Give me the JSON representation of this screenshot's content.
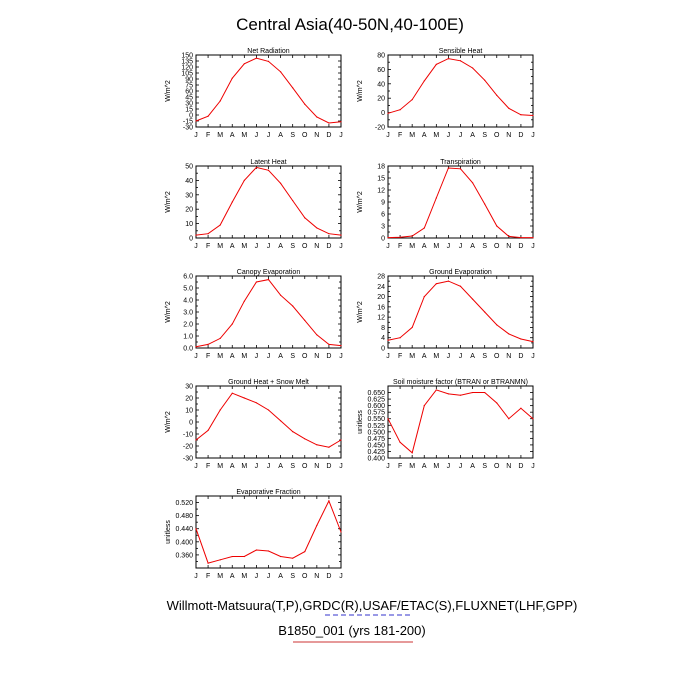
{
  "title": "Central Asia(40-50N,40-100E)",
  "footer": {
    "line1": "Willmott-Matsuura(T,P),GRDC(R),USAF/ETAC(S),FLUXNET(LHF,GPP)",
    "line2": "B1850_001 (yrs 181-200)"
  },
  "colors": {
    "line": "#ee0000",
    "axes": "#000000",
    "link_blue": "#3333cc",
    "link_red": "#cc3333"
  },
  "chart_data": [
    {
      "type": "line",
      "title": "Net Radiation",
      "ylabel": "W/m^2",
      "categories": [
        "J",
        "F",
        "M",
        "A",
        "M",
        "J",
        "J",
        "A",
        "S",
        "O",
        "N",
        "D",
        "J"
      ],
      "ylim": [
        -30,
        150
      ],
      "yticks": [
        -30,
        -15,
        0,
        15,
        30,
        45,
        60,
        75,
        90,
        105,
        120,
        135,
        150
      ],
      "ytick_labels": [
        "-30",
        "-15",
        "0",
        "15",
        "30",
        "45",
        "60",
        "75",
        "90",
        "105",
        "120",
        "135",
        "150"
      ],
      "values": [
        -15,
        -3,
        35,
        92,
        128,
        142,
        134,
        108,
        68,
        27,
        -5,
        -20,
        -17
      ]
    },
    {
      "type": "line",
      "title": "Sensible Heat",
      "ylabel": "W/m^2",
      "categories": [
        "J",
        "F",
        "M",
        "A",
        "M",
        "J",
        "J",
        "A",
        "S",
        "O",
        "N",
        "D",
        "J"
      ],
      "ylim": [
        -20,
        80
      ],
      "yticks": [
        -20,
        -10,
        0,
        10,
        20,
        30,
        40,
        50,
        60,
        70,
        80
      ],
      "ytick_labels": [
        "-20",
        "",
        "0",
        "",
        "20",
        "",
        "40",
        "",
        "60",
        "",
        "80"
      ],
      "values": [
        -1,
        4,
        18,
        44,
        67,
        75,
        72,
        62,
        45,
        24,
        6,
        -3,
        -4
      ]
    },
    {
      "type": "line",
      "title": "Latent Heat",
      "ylabel": "W/m^2",
      "categories": [
        "J",
        "F",
        "M",
        "A",
        "M",
        "J",
        "J",
        "A",
        "S",
        "O",
        "N",
        "D",
        "J"
      ],
      "ylim": [
        0,
        50
      ],
      "yticks": [
        0,
        5,
        10,
        15,
        20,
        25,
        30,
        35,
        40,
        45,
        50
      ],
      "ytick_labels": [
        "0",
        "",
        "10",
        "",
        "20",
        "",
        "30",
        "",
        "40",
        "",
        "50"
      ],
      "values": [
        2,
        3,
        9,
        25,
        40,
        49,
        47,
        38,
        26,
        14,
        7,
        3,
        2
      ]
    },
    {
      "type": "line",
      "title": "Transpiration",
      "ylabel": "W/m^2",
      "categories": [
        "J",
        "F",
        "M",
        "A",
        "M",
        "J",
        "J",
        "A",
        "S",
        "O",
        "N",
        "D",
        "J"
      ],
      "ylim": [
        0,
        18
      ],
      "yticks": [
        0,
        1.5,
        3,
        4.5,
        6,
        7.5,
        9,
        10.5,
        12,
        13.5,
        15,
        16.5,
        18
      ],
      "ytick_labels": [
        "0",
        "",
        "3",
        "",
        "6",
        "",
        "9",
        "",
        "12",
        "",
        "15",
        "",
        "18"
      ],
      "values": [
        0.1,
        0.2,
        0.5,
        2.5,
        10,
        17.5,
        17.3,
        13.8,
        8.5,
        3,
        0.4,
        0.1,
        0.1
      ]
    },
    {
      "type": "line",
      "title": "Canopy Evaporation",
      "ylabel": "W/m^2",
      "categories": [
        "J",
        "F",
        "M",
        "A",
        "M",
        "J",
        "J",
        "A",
        "S",
        "O",
        "N",
        "D",
        "J"
      ],
      "ylim": [
        0,
        6
      ],
      "yticks": [
        0,
        0.5,
        1,
        1.5,
        2,
        2.5,
        3,
        3.5,
        4,
        4.5,
        5,
        5.5,
        6
      ],
      "ytick_labels": [
        "0.0",
        "",
        "1.0",
        "",
        "2.0",
        "",
        "3.0",
        "",
        "4.0",
        "",
        "5.0",
        "",
        "6.0"
      ],
      "values": [
        0.1,
        0.3,
        0.8,
        2.0,
        3.9,
        5.5,
        5.7,
        4.4,
        3.5,
        2.3,
        1.1,
        0.3,
        0.2
      ]
    },
    {
      "type": "line",
      "title": "Ground Evaporation",
      "ylabel": "W/m^2",
      "categories": [
        "J",
        "F",
        "M",
        "A",
        "M",
        "J",
        "J",
        "A",
        "S",
        "O",
        "N",
        "D",
        "J"
      ],
      "ylim": [
        0,
        28
      ],
      "yticks": [
        0,
        2,
        4,
        6,
        8,
        10,
        12,
        14,
        16,
        18,
        20,
        22,
        24,
        26,
        28
      ],
      "ytick_labels": [
        "0",
        "",
        "4",
        "",
        "8",
        "",
        "12",
        "",
        "16",
        "",
        "20",
        "",
        "24",
        "",
        "28"
      ],
      "values": [
        3,
        4,
        8,
        20,
        25,
        26,
        24,
        19,
        14,
        9,
        5.5,
        3.5,
        2.5
      ]
    },
    {
      "type": "line",
      "title": "Ground Heat + Snow Melt",
      "ylabel": "W/m^2",
      "categories": [
        "J",
        "F",
        "M",
        "A",
        "M",
        "J",
        "J",
        "A",
        "S",
        "O",
        "N",
        "D",
        "J"
      ],
      "ylim": [
        -30,
        30
      ],
      "yticks": [
        -30,
        -25,
        -20,
        -15,
        -10,
        -5,
        0,
        5,
        10,
        15,
        20,
        25,
        30
      ],
      "ytick_labels": [
        "-30",
        "",
        "-20",
        "",
        "-10",
        "",
        "0",
        "",
        "10",
        "",
        "20",
        "",
        "30"
      ],
      "values": [
        -15,
        -7,
        10,
        24,
        20,
        16,
        10,
        1,
        -8,
        -14,
        -19,
        -21,
        -15
      ]
    },
    {
      "type": "line",
      "title": "Soil moisture factor (BTRAN or BTRANMN)",
      "ylabel": "unitless",
      "categories": [
        "J",
        "F",
        "M",
        "A",
        "M",
        "J",
        "J",
        "A",
        "S",
        "O",
        "N",
        "D",
        "J"
      ],
      "ylim": [
        0.4,
        0.675
      ],
      "yticks": [
        0.4,
        0.425,
        0.45,
        0.475,
        0.5,
        0.525,
        0.55,
        0.575,
        0.6,
        0.625,
        0.65,
        0.675
      ],
      "ytick_labels": [
        "0.400",
        "0.425",
        "0.450",
        "0.475",
        "0.500",
        "0.525",
        "0.550",
        "0.575",
        "0.600",
        "0.625",
        "0.650",
        ""
      ],
      "values": [
        0.55,
        0.46,
        0.42,
        0.6,
        0.66,
        0.645,
        0.64,
        0.65,
        0.65,
        0.61,
        0.55,
        0.59,
        0.55
      ]
    },
    {
      "type": "line",
      "title": "Evaporative Fraction",
      "ylabel": "unitless",
      "categories": [
        "J",
        "F",
        "M",
        "A",
        "M",
        "J",
        "J",
        "A",
        "S",
        "O",
        "N",
        "D",
        "J"
      ],
      "ylim": [
        0.32,
        0.54
      ],
      "yticks": [
        0.32,
        0.34,
        0.36,
        0.38,
        0.4,
        0.42,
        0.44,
        0.46,
        0.48,
        0.5,
        0.52,
        0.54
      ],
      "ytick_labels": [
        "",
        "",
        "0.360",
        "",
        "0.400",
        "",
        "0.440",
        "",
        "0.480",
        "",
        "0.520",
        ""
      ],
      "values": [
        0.44,
        0.335,
        0.345,
        0.355,
        0.355,
        0.375,
        0.372,
        0.355,
        0.35,
        0.37,
        0.45,
        0.525,
        0.43
      ]
    }
  ]
}
